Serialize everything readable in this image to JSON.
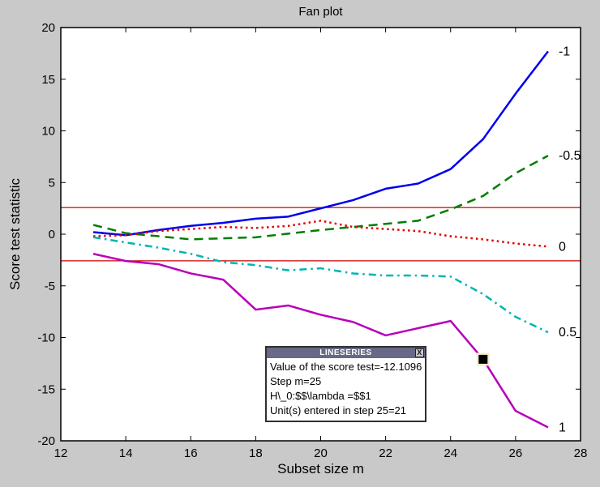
{
  "figure": {
    "background": "#c9c9c9"
  },
  "axes": {
    "xticks": [
      12,
      14,
      16,
      18,
      20,
      22,
      24,
      26,
      28
    ],
    "yticks": [
      -20,
      -15,
      -10,
      -5,
      0,
      5,
      10,
      15,
      20
    ]
  },
  "chart_data": {
    "type": "line",
    "title": "Fan plot",
    "xlabel": "Subset size m",
    "ylabel": "Score test statistic",
    "xlim": [
      12,
      28
    ],
    "ylim": [
      -20,
      20
    ],
    "grid": false,
    "legend_position": "right-edge-inline-labels",
    "x": [
      13,
      14,
      15,
      16,
      17,
      18,
      19,
      20,
      21,
      22,
      23,
      24,
      25,
      26,
      27
    ],
    "series": [
      {
        "name": "lambda=-1",
        "label": "-1",
        "color": "#0000ee",
        "style": "solid",
        "values": [
          0.2,
          -0.1,
          0.4,
          0.8,
          1.1,
          1.5,
          1.7,
          2.5,
          3.3,
          4.4,
          4.9,
          6.3,
          9.2,
          13.6,
          17.7
        ]
      },
      {
        "name": "lambda=-0.5",
        "label": "-0.5",
        "color": "#007d00",
        "style": "dashed",
        "values": [
          0.9,
          0.1,
          -0.2,
          -0.5,
          -0.4,
          -0.3,
          0.05,
          0.4,
          0.7,
          1.0,
          1.3,
          2.4,
          3.7,
          5.9,
          7.6
        ]
      },
      {
        "name": "lambda=0",
        "label": "0",
        "color": "#e00000",
        "style": "dotted",
        "values": [
          -0.2,
          -0.1,
          0.3,
          0.5,
          0.7,
          0.6,
          0.8,
          1.3,
          0.7,
          0.5,
          0.3,
          -0.2,
          -0.5,
          -0.9,
          -1.2
        ]
      },
      {
        "name": "lambda=0.5",
        "label": "0.5",
        "color": "#00b4b4",
        "style": "dashdot",
        "values": [
          -0.3,
          -0.8,
          -1.3,
          -1.9,
          -2.7,
          -3.0,
          -3.5,
          -3.3,
          -3.8,
          -4.0,
          -4.0,
          -4.1,
          -5.8,
          -8.0,
          -9.5
        ]
      },
      {
        "name": "lambda=1",
        "label": "1",
        "color": "#b800b8",
        "style": "solid",
        "values": [
          -1.9,
          -2.6,
          -2.9,
          -3.8,
          -4.4,
          -7.3,
          -6.9,
          -7.8,
          -8.5,
          -9.8,
          -9.1,
          -8.4,
          -12.1096,
          -17.1,
          -18.7
        ]
      }
    ],
    "bands": {
      "values": [
        2.58,
        -2.58
      ],
      "color": "#cc0000"
    },
    "marker": {
      "x": 25,
      "y": -12.1096,
      "color": "#000000",
      "halo_color": "#f2edcf"
    }
  },
  "tooltip": {
    "title": "LINESERIES",
    "close_label": "X",
    "lines": [
      "Value of the score test=-12.1096",
      "Step m=25",
      "H\\_0:$$\\lambda =$$1",
      "Unit(s) entered in step 25=21"
    ]
  }
}
